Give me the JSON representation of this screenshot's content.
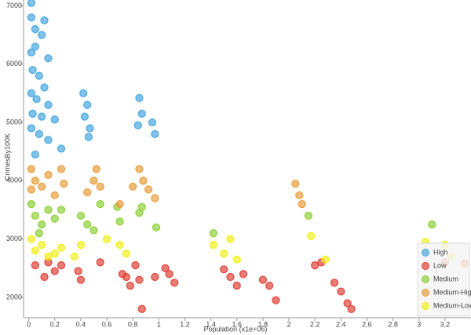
{
  "chart_data": {
    "type": "scatter",
    "x_label": "Population (x1e+06)",
    "y_label": "CrimesBy100K",
    "xlim": [
      -0.04,
      3.4
    ],
    "ylim": [
      1650,
      7100
    ],
    "xticks": [
      0,
      0.2,
      0.4,
      0.6,
      0.8,
      1,
      1.2,
      1.4,
      1.6,
      1.8,
      2,
      2.2,
      2.4,
      2.6,
      2.8,
      3,
      3.2
    ],
    "yticks": [
      2000,
      3000,
      4000,
      5000,
      6000,
      7000
    ],
    "legend": "bottom-right",
    "series": [
      {
        "name": "High",
        "color": "#4aa8e0",
        "x": [
          0.02,
          0.02,
          0.05,
          0.12,
          0.02,
          0.05,
          0.1,
          0.15,
          0.03,
          0.08,
          0.12,
          0.02,
          0.06,
          0.15,
          0.03,
          0.1,
          0.2,
          0.02,
          0.08,
          0.15,
          0.25,
          0.05,
          0.42,
          0.45,
          0.43,
          0.47,
          0.46,
          0.85,
          0.87,
          0.84,
          0.95,
          0.97
        ],
        "values": [
          7050,
          6800,
          6600,
          6750,
          6200,
          6300,
          6500,
          6100,
          5900,
          5800,
          5600,
          5500,
          5400,
          5300,
          5150,
          5100,
          5050,
          4900,
          4800,
          4700,
          4550,
          4450,
          5500,
          5300,
          5100,
          4900,
          4750,
          5420,
          5150,
          4950,
          5000,
          4800
        ]
      },
      {
        "name": "Low",
        "color": "#e0443a",
        "x": [
          0.05,
          0.15,
          0.12,
          0.25,
          0.2,
          0.38,
          0.4,
          0.55,
          0.72,
          0.75,
          0.78,
          0.82,
          0.85,
          0.87,
          0.97,
          1.05,
          1.08,
          1.12,
          1.5,
          1.55,
          1.6,
          1.65,
          1.8,
          1.85,
          1.9,
          2.2,
          2.25,
          2.35,
          2.4,
          2.45,
          2.48,
          3.2,
          3.35
        ],
        "values": [
          2550,
          2600,
          2350,
          2550,
          2450,
          2450,
          2300,
          2600,
          2400,
          2350,
          2200,
          2550,
          2300,
          1800,
          2350,
          2500,
          2400,
          2250,
          2480,
          2350,
          2200,
          2400,
          2300,
          2200,
          1950,
          2550,
          2600,
          2250,
          2100,
          1900,
          1800,
          2600,
          2580
        ]
      },
      {
        "name": "Medium",
        "color": "#8fd13a",
        "x": [
          0.02,
          0.05,
          0.1,
          0.15,
          0.2,
          0.08,
          0.25,
          0.4,
          0.45,
          0.5,
          0.55,
          0.68,
          0.7,
          0.85,
          0.87,
          0.98,
          1.42,
          2.15,
          3.1
        ],
        "values": [
          3600,
          3400,
          3250,
          3500,
          3350,
          3100,
          3500,
          3400,
          3250,
          3150,
          3600,
          3550,
          3300,
          3450,
          3550,
          3200,
          3100,
          3400,
          3250
        ]
      },
      {
        "name": "Medium-High",
        "color": "#e8a040",
        "x": [
          0.02,
          0.05,
          0.1,
          0.15,
          0.25,
          0.27,
          0.02,
          0.2,
          0.45,
          0.5,
          0.52,
          0.55,
          0.7,
          0.8,
          0.85,
          0.88,
          0.92,
          0.97,
          2.05,
          2.08,
          2.1
        ],
        "values": [
          4200,
          4000,
          3900,
          4100,
          4200,
          3950,
          3850,
          3750,
          3800,
          4000,
          4200,
          3900,
          3600,
          3900,
          4200,
          4000,
          3850,
          3700,
          3950,
          3750,
          3600
        ]
      },
      {
        "name": "Medium-Low",
        "color": "#f0f020",
        "x": [
          0.02,
          0.05,
          0.1,
          0.15,
          0.2,
          0.25,
          0.35,
          0.4,
          0.6,
          0.7,
          0.75,
          1.42,
          1.5,
          1.55,
          1.6,
          2.17,
          2.28,
          3.05,
          3.2,
          3.25
        ],
        "values": [
          3000,
          2800,
          2900,
          2700,
          2750,
          2850,
          2700,
          2900,
          3000,
          2900,
          2750,
          2900,
          2750,
          3000,
          2650,
          3050,
          2650,
          2950,
          2900,
          2700
        ]
      }
    ]
  }
}
